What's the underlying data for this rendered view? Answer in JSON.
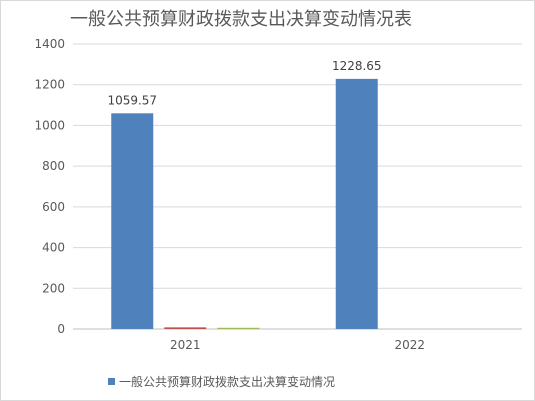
{
  "chart_data": {
    "type": "bar",
    "title": "一般公共预算财政拨款支出决算变动情况表",
    "categories": [
      "2021",
      "2022"
    ],
    "series": [
      {
        "name": "一般公共预算财政拨款支出决算变动情况",
        "values": [
          1059.57,
          1228.65
        ],
        "color": "#4f81bd",
        "labels": [
          "1059.57",
          "1228.65"
        ]
      },
      {
        "values": [
          8,
          0
        ],
        "color": "#c0504d"
      },
      {
        "values": [
          6,
          0
        ],
        "color": "#9bbb59"
      }
    ],
    "ylim": [
      0,
      1400
    ],
    "yticks": [
      0,
      200,
      400,
      600,
      800,
      1000,
      1200,
      1400
    ],
    "grid": true,
    "legend_position": "bottom"
  }
}
